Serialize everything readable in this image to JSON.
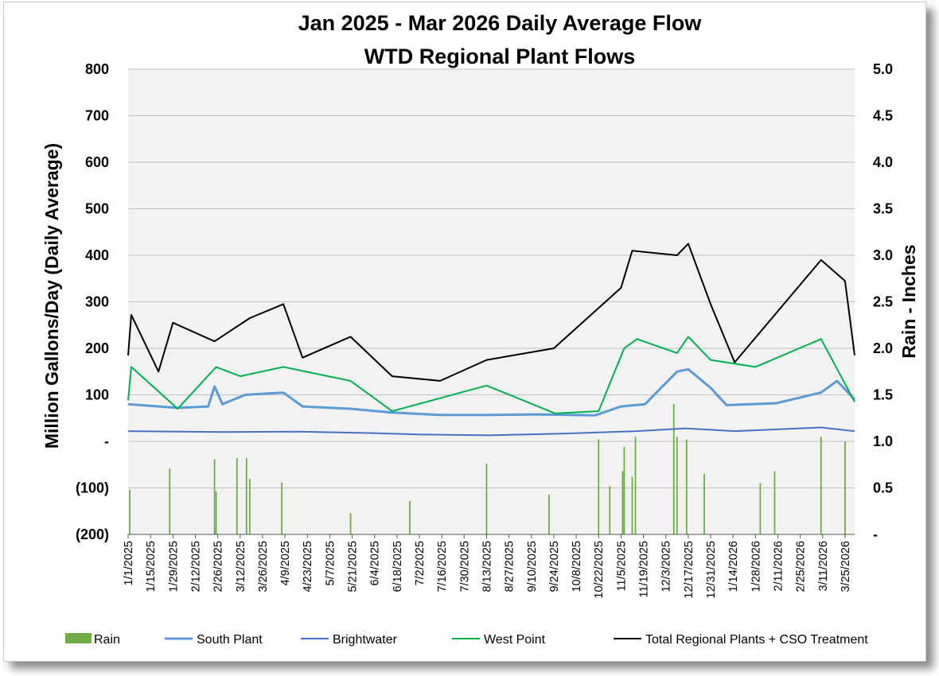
{
  "chart_data": {
    "type": "line",
    "title": "Jan 2025 - Mar 2026 Daily Average Flow",
    "subtitle": "WTD Regional Plant Flows",
    "ylabel": "Million Gallons/Day (Daily Average)",
    "y2label": "Rain - Inches",
    "ylim": [
      -200,
      800
    ],
    "y2lim": [
      0,
      5
    ],
    "y_ticks": [
      "800",
      "700",
      "600",
      "500",
      "400",
      "300",
      "200",
      "100",
      "-",
      "(100)",
      "(200)"
    ],
    "y2_ticks": [
      "5.0",
      "4.5",
      "4.0",
      "3.5",
      "3.0",
      "2.5",
      "2.0",
      "1.5",
      "1.0",
      "0.5",
      "-"
    ],
    "x_range": [
      "2025-01-01",
      "2026-03-31"
    ],
    "x_ticks": [
      "1/1/2025",
      "1/15/2025",
      "1/29/2025",
      "2/12/2025",
      "2/26/2025",
      "3/12/2025",
      "3/26/2025",
      "4/9/2025",
      "4/23/2025",
      "5/7/2025",
      "5/21/2025",
      "6/4/2025",
      "6/18/2025",
      "7/2/2025",
      "7/16/2025",
      "7/30/2025",
      "8/13/2025",
      "8/27/2025",
      "9/10/2025",
      "9/24/2025",
      "10/8/2025",
      "10/22/2025",
      "11/5/2025",
      "11/19/2025",
      "12/3/2025",
      "12/17/2025",
      "12/31/2025",
      "1/14/2026",
      "1/28/2026",
      "2/11/2026",
      "2/25/2026",
      "3/11/2026",
      "3/25/2026"
    ],
    "grid": true,
    "legend_position": "bottom",
    "series": [
      {
        "name": "Rain",
        "kind": "bar",
        "axis": "right",
        "color": "#70ad47",
        "peaks": [
          {
            "date": "2025-01-02",
            "inches": 0.48
          },
          {
            "date": "2025-01-27",
            "inches": 0.71
          },
          {
            "date": "2025-02-24",
            "inches": 0.81
          },
          {
            "date": "2025-02-25",
            "inches": 0.46
          },
          {
            "date": "2025-03-10",
            "inches": 0.82
          },
          {
            "date": "2025-03-16",
            "inches": 0.82
          },
          {
            "date": "2025-03-18",
            "inches": 0.6
          },
          {
            "date": "2025-04-07",
            "inches": 0.56
          },
          {
            "date": "2025-05-20",
            "inches": 0.23
          },
          {
            "date": "2025-06-26",
            "inches": 0.36
          },
          {
            "date": "2025-08-13",
            "inches": 0.76
          },
          {
            "date": "2025-09-21",
            "inches": 0.43
          },
          {
            "date": "2025-10-22",
            "inches": 1.02
          },
          {
            "date": "2025-10-29",
            "inches": 0.52
          },
          {
            "date": "2025-11-06",
            "inches": 0.68
          },
          {
            "date": "2025-11-07",
            "inches": 0.94
          },
          {
            "date": "2025-11-12",
            "inches": 0.62
          },
          {
            "date": "2025-11-14",
            "inches": 1.05
          },
          {
            "date": "2025-12-08",
            "inches": 1.4
          },
          {
            "date": "2025-12-10",
            "inches": 1.05
          },
          {
            "date": "2025-12-16",
            "inches": 1.02
          },
          {
            "date": "2025-12-27",
            "inches": 0.65
          },
          {
            "date": "2026-01-31",
            "inches": 0.55
          },
          {
            "date": "2026-02-09",
            "inches": 0.68
          },
          {
            "date": "2026-03-10",
            "inches": 1.05
          },
          {
            "date": "2026-03-25",
            "inches": 1.0
          }
        ]
      },
      {
        "name": "South Plant",
        "kind": "line",
        "axis": "left",
        "color": "#5b9bd5",
        "points": [
          [
            "2025-01-01",
            80
          ],
          [
            "2025-02-01",
            72
          ],
          [
            "2025-02-20",
            75
          ],
          [
            "2025-02-24",
            118
          ],
          [
            "2025-03-01",
            80
          ],
          [
            "2025-03-15",
            100
          ],
          [
            "2025-04-08",
            105
          ],
          [
            "2025-04-20",
            75
          ],
          [
            "2025-05-20",
            70
          ],
          [
            "2025-06-15",
            62
          ],
          [
            "2025-07-15",
            57
          ],
          [
            "2025-08-15",
            57
          ],
          [
            "2025-09-15",
            58
          ],
          [
            "2025-10-20",
            56
          ],
          [
            "2025-11-05",
            75
          ],
          [
            "2025-11-20",
            80
          ],
          [
            "2025-12-10",
            150
          ],
          [
            "2025-12-17",
            155
          ],
          [
            "2025-12-31",
            115
          ],
          [
            "2026-01-10",
            78
          ],
          [
            "2026-02-10",
            82
          ],
          [
            "2026-03-10",
            105
          ],
          [
            "2026-03-20",
            130
          ],
          [
            "2026-03-31",
            90
          ]
        ]
      },
      {
        "name": "Brightwater",
        "kind": "line",
        "axis": "left",
        "color": "#4472c4",
        "points": [
          [
            "2025-01-01",
            22
          ],
          [
            "2025-03-01",
            20
          ],
          [
            "2025-04-15",
            21
          ],
          [
            "2025-06-01",
            18
          ],
          [
            "2025-07-01",
            15
          ],
          [
            "2025-08-15",
            13
          ],
          [
            "2025-10-01",
            17
          ],
          [
            "2025-11-15",
            22
          ],
          [
            "2025-12-15",
            28
          ],
          [
            "2026-01-15",
            22
          ],
          [
            "2026-03-10",
            30
          ],
          [
            "2026-03-31",
            22
          ]
        ]
      },
      {
        "name": "West Point",
        "kind": "line",
        "axis": "left",
        "color": "#00b050",
        "points": [
          [
            "2025-01-01",
            88
          ],
          [
            "2025-01-03",
            160
          ],
          [
            "2025-02-01",
            70
          ],
          [
            "2025-02-25",
            160
          ],
          [
            "2025-03-12",
            140
          ],
          [
            "2025-04-08",
            160
          ],
          [
            "2025-05-20",
            130
          ],
          [
            "2025-06-15",
            65
          ],
          [
            "2025-08-13",
            120
          ],
          [
            "2025-09-25",
            60
          ],
          [
            "2025-10-22",
            65
          ],
          [
            "2025-11-07",
            200
          ],
          [
            "2025-11-15",
            220
          ],
          [
            "2025-12-10",
            190
          ],
          [
            "2025-12-17",
            225
          ],
          [
            "2025-12-31",
            175
          ],
          [
            "2026-01-28",
            160
          ],
          [
            "2026-03-10",
            220
          ],
          [
            "2026-03-31",
            85
          ]
        ]
      },
      {
        "name": "Total Regional Plants + CSO Treatment",
        "kind": "line",
        "axis": "left",
        "color": "#000000",
        "points": [
          [
            "2025-01-01",
            185
          ],
          [
            "2025-01-03",
            272
          ],
          [
            "2025-01-20",
            150
          ],
          [
            "2025-01-29",
            255
          ],
          [
            "2025-02-24",
            215
          ],
          [
            "2025-03-18",
            265
          ],
          [
            "2025-04-08",
            295
          ],
          [
            "2025-04-20",
            180
          ],
          [
            "2025-05-20",
            225
          ],
          [
            "2025-06-15",
            140
          ],
          [
            "2025-07-15",
            130
          ],
          [
            "2025-08-13",
            175
          ],
          [
            "2025-09-24",
            200
          ],
          [
            "2025-11-05",
            330
          ],
          [
            "2025-11-12",
            410
          ],
          [
            "2025-12-10",
            400
          ],
          [
            "2025-12-17",
            425
          ],
          [
            "2025-12-31",
            295
          ],
          [
            "2026-01-15",
            170
          ],
          [
            "2026-03-10",
            390
          ],
          [
            "2026-03-25",
            345
          ],
          [
            "2026-03-31",
            185
          ]
        ]
      }
    ]
  }
}
